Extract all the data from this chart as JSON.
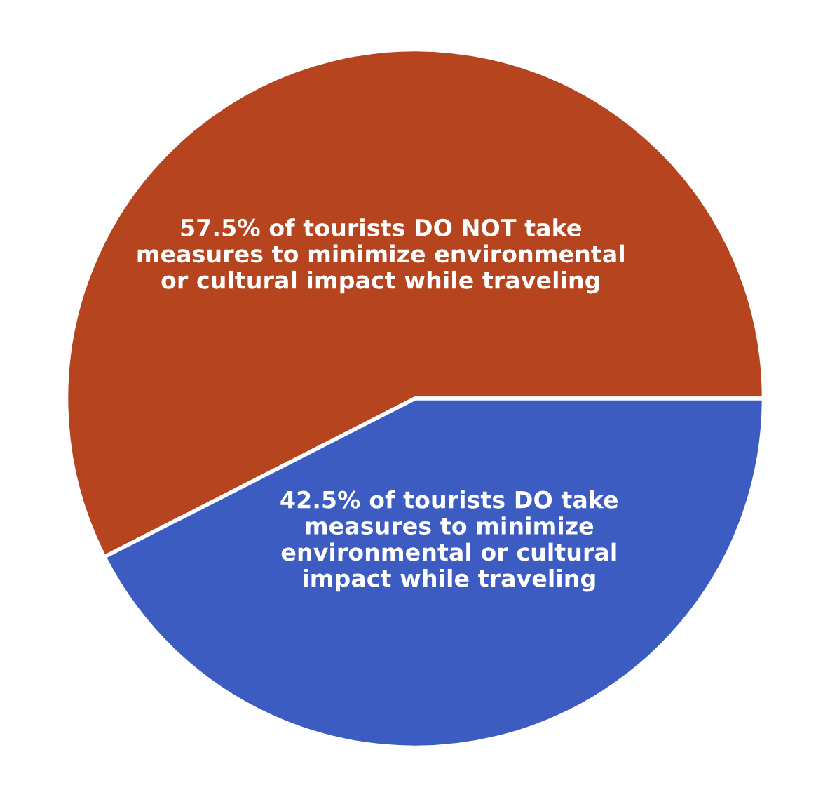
{
  "chart_data": {
    "type": "pie",
    "categories": [
      "57.5% of tourists DO NOT take\nmeasures to minimize environmental\nor cultural impact while traveling",
      "42.5% of tourists DO take\nmeasures to minimize\nenvironmental or cultural\nimpact while traveling"
    ],
    "values": [
      57.5,
      42.5
    ],
    "colors": [
      "#b5441f",
      "#3c5cc2"
    ],
    "legend": false
  }
}
